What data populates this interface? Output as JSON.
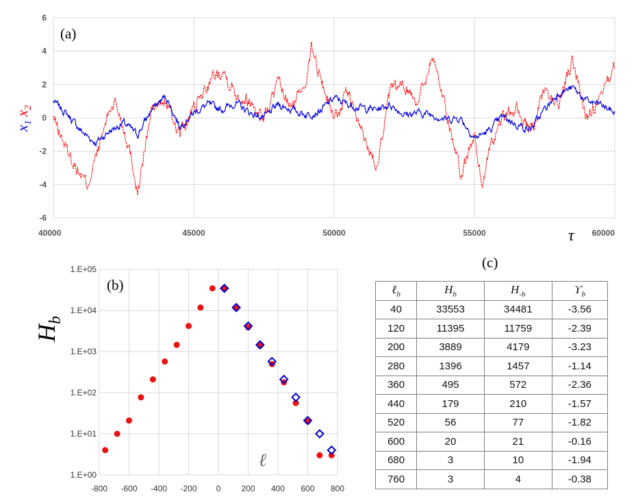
{
  "chart_data": [
    {
      "type": "line",
      "panel_label": "(a)",
      "xlim": [
        40000,
        60000
      ],
      "ylim": [
        -6,
        6
      ],
      "xticks": [
        "40000",
        "45000",
        "50000",
        "55000",
        "60000"
      ],
      "yticks": [
        "-6",
        "-4",
        "-2",
        "0",
        "2",
        "4",
        "6"
      ],
      "xlabel": "τ",
      "ylabel": {
        "x1": "x",
        "x1_sub": "1",
        "x2": "x",
        "x2_sub": "2"
      },
      "series": [
        {
          "name": "x1",
          "color": "#0000dd",
          "x": [
            40000,
            40500,
            41000,
            41500,
            42000,
            42500,
            43000,
            43500,
            44000,
            44500,
            45000,
            45500,
            46000,
            46500,
            47000,
            47500,
            48000,
            48500,
            49000,
            49500,
            50000,
            50500,
            51000,
            51500,
            52000,
            52500,
            53000,
            53500,
            54000,
            54500,
            55000,
            55500,
            56000,
            56500,
            57000,
            57500,
            58000,
            58500,
            59000,
            59500,
            60000
          ],
          "y": [
            1.0,
            0.2,
            -0.8,
            -1.5,
            -0.8,
            -0.3,
            -1.0,
            0.5,
            1.3,
            -0.5,
            0.3,
            0.8,
            0.5,
            0.9,
            0.3,
            0.0,
            0.8,
            0.5,
            0.2,
            0.4,
            1.2,
            0.8,
            0.6,
            0.5,
            0.8,
            0.2,
            0.3,
            0.2,
            -0.1,
            0.0,
            -1.2,
            -0.8,
            0.1,
            -0.4,
            -0.7,
            0.5,
            1.5,
            1.8,
            1.0,
            0.8,
            0.3
          ]
        },
        {
          "name": "x2",
          "color": "#ff0000",
          "x": [
            40000,
            40500,
            41000,
            41200,
            41500,
            42000,
            42200,
            42500,
            42800,
            43000,
            43500,
            44000,
            44500,
            45000,
            45500,
            46000,
            46500,
            47000,
            47500,
            48000,
            48500,
            49000,
            49200,
            49500,
            50000,
            50500,
            51000,
            51500,
            52000,
            52500,
            53000,
            53500,
            54000,
            54500,
            55000,
            55300,
            55500,
            56000,
            56500,
            57000,
            57500,
            58000,
            58500,
            59000,
            59500,
            60000
          ],
          "y": [
            0.0,
            -2.0,
            -3.5,
            -4.0,
            -2.5,
            0.5,
            1.0,
            -0.5,
            -2.5,
            -4.5,
            0.5,
            1.0,
            -1.0,
            0.5,
            2.0,
            3.0,
            1.5,
            1.0,
            0.0,
            2.0,
            0.5,
            2.5,
            4.3,
            2.5,
            0.0,
            1.5,
            -1.0,
            -2.8,
            1.5,
            2.0,
            1.0,
            3.8,
            0.5,
            -3.5,
            -1.0,
            -4.2,
            -2.0,
            0.0,
            0.5,
            -1.0,
            1.5,
            0.8,
            3.5,
            0.0,
            1.0,
            3.2
          ]
        }
      ]
    },
    {
      "type": "scatter",
      "panel_label": "(b)",
      "xlim": [
        -800,
        800
      ],
      "ylim_log10": [
        0,
        5
      ],
      "xticks": [
        "-800",
        "-600",
        "-400",
        "-200",
        "0",
        "200",
        "400",
        "600",
        "800"
      ],
      "yticks": [
        "1.E+00",
        "1.E+01",
        "1.E+02",
        "1.E+03",
        "1.E+04",
        "1.E+05"
      ],
      "ylabel": {
        "main": "H",
        "sub": "b"
      },
      "xlabel": "ℓ",
      "series": [
        {
          "name": "red-dots",
          "marker": "circle",
          "color": "#ee1111",
          "x": [
            -760,
            -680,
            -600,
            -520,
            -440,
            -360,
            -280,
            -200,
            -120,
            -40,
            40,
            120,
            200,
            280,
            360,
            440,
            520,
            600,
            680,
            760
          ],
          "y": [
            4,
            10,
            21,
            77,
            210,
            572,
            1457,
            4179,
            11759,
            34481,
            33553,
            11395,
            3889,
            1396,
            495,
            179,
            56,
            20,
            3,
            3
          ]
        },
        {
          "name": "blue-diamonds",
          "marker": "diamond",
          "color": "#0000cc",
          "x": [
            40,
            120,
            200,
            280,
            360,
            440,
            520,
            600,
            680,
            760
          ],
          "y": [
            34481,
            11759,
            4179,
            1457,
            572,
            210,
            77,
            21,
            10,
            4
          ]
        }
      ]
    },
    {
      "type": "table",
      "panel_label": "(c)",
      "columns": [
        {
          "main": "ℓ",
          "sub": "b"
        },
        {
          "main": "H",
          "sub": "b"
        },
        {
          "main": "H",
          "sub": "-b"
        },
        {
          "main": "ϒ",
          "sub": "b"
        }
      ],
      "rows": [
        [
          "40",
          "33553",
          "34481",
          "-3.56"
        ],
        [
          "120",
          "11395",
          "11759",
          "-2.39"
        ],
        [
          "200",
          "3889",
          "4179",
          "-3.23"
        ],
        [
          "280",
          "1396",
          "1457",
          "-1.14"
        ],
        [
          "360",
          "495",
          "572",
          "-2.36"
        ],
        [
          "440",
          "179",
          "210",
          "-1.57"
        ],
        [
          "520",
          "56",
          "77",
          "-1.82"
        ],
        [
          "600",
          "20",
          "21",
          "-0.16"
        ],
        [
          "680",
          "3",
          "10",
          "-1.94"
        ],
        [
          "760",
          "3",
          "4",
          "-0.38"
        ]
      ]
    }
  ]
}
